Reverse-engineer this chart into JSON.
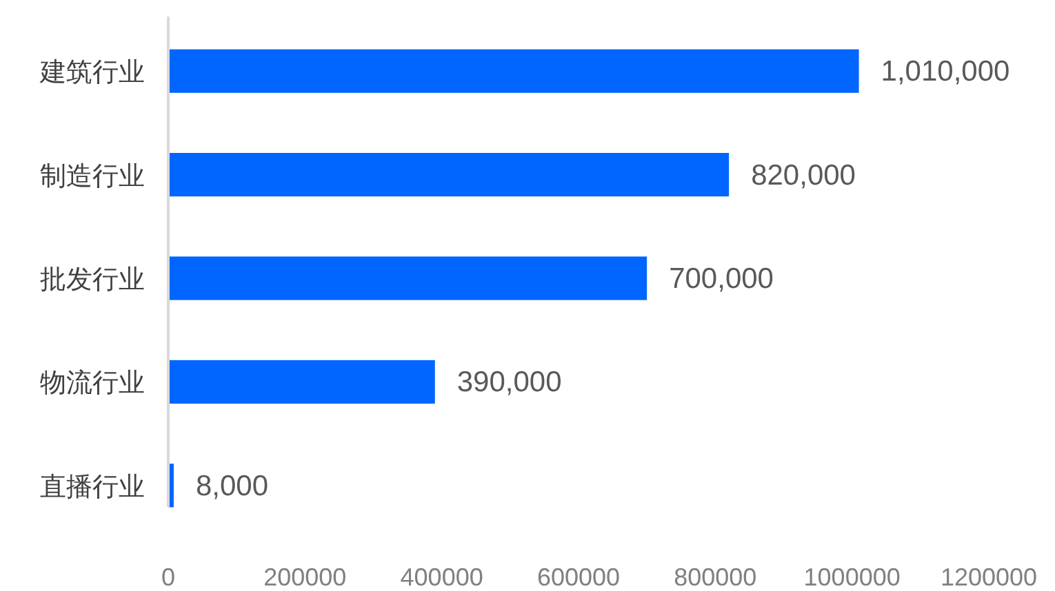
{
  "chart_data": {
    "type": "bar",
    "orientation": "horizontal",
    "categories": [
      "建筑行业",
      "制造行业",
      "批发行业",
      "物流行业",
      "直播行业"
    ],
    "values": [
      1010000,
      820000,
      700000,
      390000,
      8000
    ],
    "value_labels": [
      "1,010,000",
      "820,000",
      "700,000",
      "390,000",
      "8,000"
    ],
    "color": "#0066ff",
    "xlim": [
      0,
      1200000
    ],
    "xticks": [
      0,
      200000,
      400000,
      600000,
      800000,
      1000000,
      1200000
    ]
  }
}
